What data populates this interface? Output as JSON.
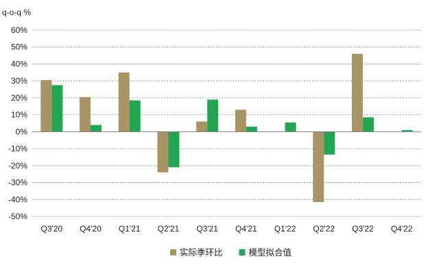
{
  "chart_data": {
    "type": "bar",
    "unit_label": "q-o-q %",
    "categories": [
      "Q3'20",
      "Q4'20",
      "Q1'21",
      "Q2'21",
      "Q3'21",
      "Q4'21",
      "Q1'22",
      "Q2'22",
      "Q3'22",
      "Q4'22"
    ],
    "series": [
      {
        "name": "实际季环比",
        "color": "#A99466",
        "values": [
          30.5,
          20.5,
          35,
          -24,
          6,
          13,
          null,
          -41.5,
          46,
          null
        ]
      },
      {
        "name": "模型拟合值",
        "color": "#22A652",
        "values": [
          27.5,
          4,
          18.5,
          -21,
          19,
          3,
          5.5,
          -13.5,
          8.5,
          1
        ]
      }
    ],
    "ylim": [
      -50,
      60
    ],
    "yticks": [
      60,
      50,
      40,
      30,
      20,
      10,
      0,
      -10,
      -20,
      -30,
      -40,
      -50
    ],
    "ytick_labels": [
      "60%",
      "50%",
      "40%",
      "30%",
      "20%",
      "10%",
      "0%",
      "-10%",
      "-20%",
      "-30%",
      "-40%",
      "-50%"
    ],
    "grid": true,
    "legend": "bottom-center"
  }
}
